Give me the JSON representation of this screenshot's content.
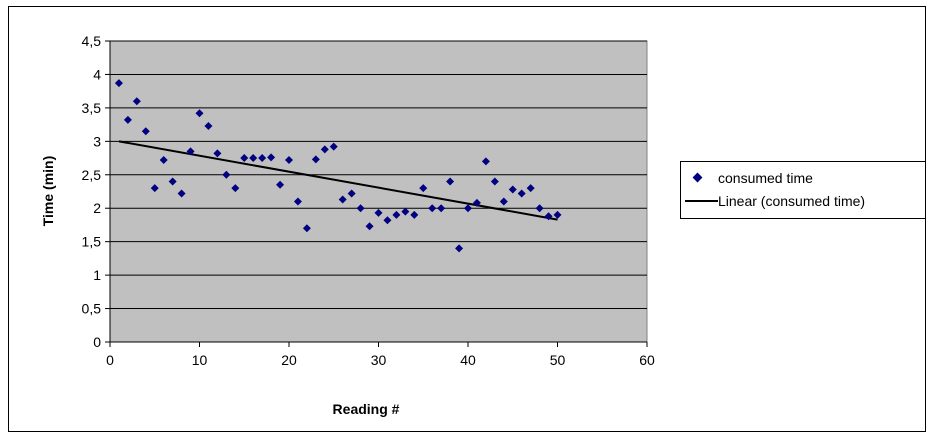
{
  "chart_data": {
    "type": "scatter",
    "title": "",
    "xlabel": "Reading #",
    "ylabel": "Time (min)",
    "xlim": [
      0,
      60
    ],
    "ylim": [
      0,
      4.5
    ],
    "x_ticks": [
      "0",
      "10",
      "20",
      "30",
      "40",
      "50",
      "60"
    ],
    "y_ticks": [
      "0",
      "0,5",
      "1",
      "1,5",
      "2",
      "2,5",
      "3",
      "3,5",
      "4",
      "4,5"
    ],
    "grid": true,
    "legend_position": "right",
    "series": [
      {
        "name": "consumed time",
        "marker": "diamond",
        "color": "#000080",
        "x": [
          1,
          2,
          3,
          4,
          5,
          6,
          7,
          8,
          9,
          10,
          11,
          12,
          13,
          14,
          15,
          16,
          17,
          18,
          19,
          20,
          21,
          22,
          23,
          24,
          25,
          26,
          27,
          28,
          29,
          30,
          31,
          32,
          33,
          34,
          35,
          36,
          37,
          38,
          39,
          40,
          41,
          42,
          43,
          44,
          45,
          46,
          47,
          48,
          49,
          50
        ],
        "y": [
          3.87,
          3.32,
          3.6,
          3.15,
          2.3,
          2.72,
          2.4,
          2.22,
          2.85,
          3.42,
          3.23,
          2.82,
          2.5,
          2.3,
          2.75,
          2.75,
          2.75,
          2.76,
          2.35,
          2.72,
          2.1,
          1.7,
          2.73,
          2.88,
          2.92,
          2.13,
          2.22,
          2.0,
          1.73,
          1.93,
          1.82,
          1.9,
          1.95,
          1.9,
          2.3,
          2.0,
          2.0,
          2.4,
          1.4,
          2.0,
          2.08,
          2.7,
          2.4,
          2.1,
          2.28,
          2.22,
          2.3,
          2.0,
          1.88,
          1.9
        ]
      },
      {
        "name": "Linear (consumed time)",
        "type": "line",
        "color": "#000000",
        "x": [
          1,
          50
        ],
        "y": [
          3.0,
          1.83
        ]
      }
    ]
  },
  "colors": {
    "plot_background": "#c0c0c0",
    "gridline": "#000000",
    "marker": "#000080",
    "trendline": "#000000"
  }
}
